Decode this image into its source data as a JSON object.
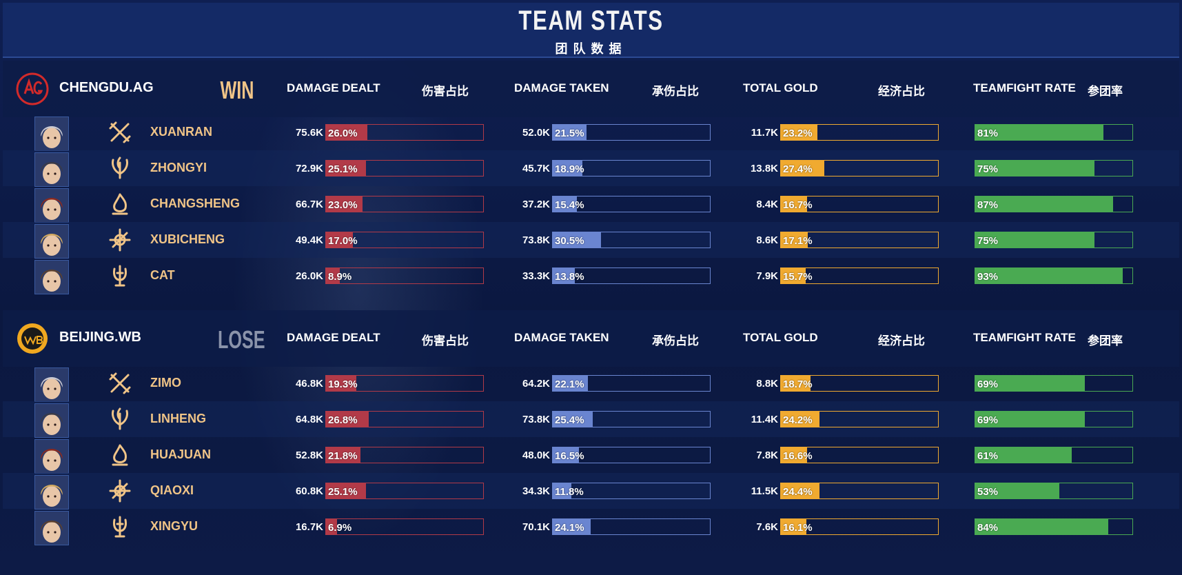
{
  "header": {
    "title": "TEAM STATS",
    "subtitle": "团队数据"
  },
  "columns": {
    "damage_dealt": "DAMAGE DEALT",
    "damage_dealt_cn": "伤害占比",
    "damage_taken": "DAMAGE TAKEN",
    "damage_taken_cn": "承伤占比",
    "total_gold": "TOTAL GOLD",
    "total_gold_cn": "经济占比",
    "teamfight_rate": "TEAMFIGHT RATE",
    "teamfight_rate_cn": "参团率"
  },
  "colors": {
    "damage_dealt": "#b23a48",
    "damage_taken": "#6a85d0",
    "total_gold": "#f0aa30",
    "teamfight_rate": "#4aaa52",
    "player_name": "#f0c487"
  },
  "teams": [
    {
      "name": "CHENGDU.AG",
      "result": "WIN",
      "logo_icon": "chengdu-ag-logo",
      "players": [
        {
          "name": "XUANRAN",
          "role_icon": "crossed-swords-icon",
          "dd": "75.6K",
          "dd_pct": "26.0%",
          "dd_frac": 0.26,
          "dt": "52.0K",
          "dt_pct": "21.5%",
          "dt_frac": 0.215,
          "gold": "11.7K",
          "gold_pct": "23.2%",
          "gold_frac": 0.232,
          "tf": "81%",
          "tf_frac": 0.81
        },
        {
          "name": "ZHONGYI",
          "role_icon": "leaf-blade-icon",
          "dd": "72.9K",
          "dd_pct": "25.1%",
          "dd_frac": 0.251,
          "dt": "45.7K",
          "dt_pct": "18.9%",
          "dt_frac": 0.189,
          "gold": "13.8K",
          "gold_pct": "27.4%",
          "gold_frac": 0.274,
          "tf": "75%",
          "tf_frac": 0.75
        },
        {
          "name": "CHANGSHENG",
          "role_icon": "flame-icon",
          "dd": "66.7K",
          "dd_pct": "23.0%",
          "dd_frac": 0.23,
          "dt": "37.2K",
          "dt_pct": "15.4%",
          "dt_frac": 0.154,
          "gold": "8.4K",
          "gold_pct": "16.7%",
          "gold_frac": 0.167,
          "tf": "87%",
          "tf_frac": 0.87
        },
        {
          "name": "XUBICHENG",
          "role_icon": "compass-emblem-icon",
          "dd": "49.4K",
          "dd_pct": "17.0%",
          "dd_frac": 0.17,
          "dt": "73.8K",
          "dt_pct": "30.5%",
          "dt_frac": 0.305,
          "gold": "8.6K",
          "gold_pct": "17.1%",
          "gold_frac": 0.171,
          "tf": "75%",
          "tf_frac": 0.75
        },
        {
          "name": "CAT",
          "role_icon": "trident-emblem-icon",
          "dd": "26.0K",
          "dd_pct": "8.9%",
          "dd_frac": 0.089,
          "dt": "33.3K",
          "dt_pct": "13.8%",
          "dt_frac": 0.138,
          "gold": "7.9K",
          "gold_pct": "15.7%",
          "gold_frac": 0.157,
          "tf": "93%",
          "tf_frac": 0.93
        }
      ]
    },
    {
      "name": "BEIJING.WB",
      "result": "LOSE",
      "logo_icon": "beijing-wb-logo",
      "players": [
        {
          "name": "ZIMO",
          "role_icon": "crossed-swords-icon",
          "dd": "46.8K",
          "dd_pct": "19.3%",
          "dd_frac": 0.193,
          "dt": "64.2K",
          "dt_pct": "22.1%",
          "dt_frac": 0.221,
          "gold": "8.8K",
          "gold_pct": "18.7%",
          "gold_frac": 0.187,
          "tf": "69%",
          "tf_frac": 0.69
        },
        {
          "name": "LINHENG",
          "role_icon": "leaf-blade-icon",
          "dd": "64.8K",
          "dd_pct": "26.8%",
          "dd_frac": 0.268,
          "dt": "73.8K",
          "dt_pct": "25.4%",
          "dt_frac": 0.254,
          "gold": "11.4K",
          "gold_pct": "24.2%",
          "gold_frac": 0.242,
          "tf": "69%",
          "tf_frac": 0.69
        },
        {
          "name": "HUAJUAN",
          "role_icon": "flame-icon",
          "dd": "52.8K",
          "dd_pct": "21.8%",
          "dd_frac": 0.218,
          "dt": "48.0K",
          "dt_pct": "16.5%",
          "dt_frac": 0.165,
          "gold": "7.8K",
          "gold_pct": "16.6%",
          "gold_frac": 0.166,
          "tf": "61%",
          "tf_frac": 0.61
        },
        {
          "name": "QIAOXI",
          "role_icon": "compass-emblem-icon",
          "dd": "60.8K",
          "dd_pct": "25.1%",
          "dd_frac": 0.251,
          "dt": "34.3K",
          "dt_pct": "11.8%",
          "dt_frac": 0.118,
          "gold": "11.5K",
          "gold_pct": "24.4%",
          "gold_frac": 0.244,
          "tf": "53%",
          "tf_frac": 0.53
        },
        {
          "name": "XINGYU",
          "role_icon": "trident-emblem-icon",
          "dd": "16.7K",
          "dd_pct": "6.9%",
          "dd_frac": 0.069,
          "dt": "70.1K",
          "dt_pct": "24.1%",
          "dt_frac": 0.241,
          "gold": "7.6K",
          "gold_pct": "16.1%",
          "gold_frac": 0.161,
          "tf": "84%",
          "tf_frac": 0.84
        }
      ]
    }
  ]
}
